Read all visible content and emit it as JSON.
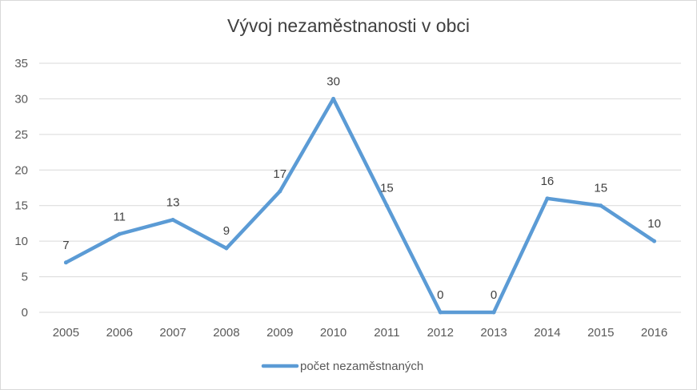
{
  "chart_data": {
    "type": "line",
    "title": "Vývoj nezaměstnanosti v obci",
    "xlabel": "",
    "ylabel": "",
    "categories": [
      "2005",
      "2006",
      "2007",
      "2008",
      "2009",
      "2010",
      "2011",
      "2012",
      "2013",
      "2014",
      "2015",
      "2016"
    ],
    "series": [
      {
        "name": "počet nezaměstnaných",
        "values": [
          7,
          11,
          13,
          9,
          17,
          30,
          15,
          0,
          0,
          16,
          15,
          10
        ],
        "color": "#5b9bd5"
      }
    ],
    "ylim": [
      0,
      35
    ],
    "yticks": [
      0,
      5,
      10,
      15,
      20,
      25,
      30,
      35
    ],
    "grid": true,
    "data_labels": true,
    "legend_position": "bottom"
  }
}
